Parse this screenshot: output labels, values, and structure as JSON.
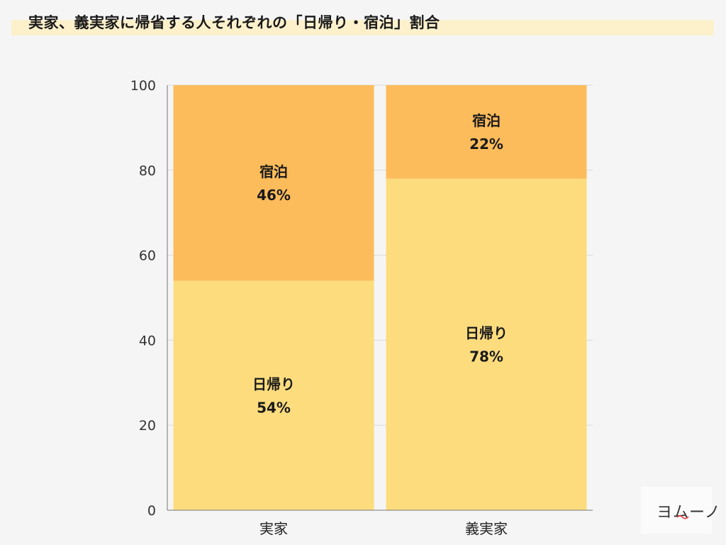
{
  "title": "実家、義実家に帰省する人それぞれの「日帰り・宿泊」割合",
  "logo": "ヨムーノ",
  "colors": {
    "higaeri": "#fddc7e",
    "shukuhaku": "#fdbc5b",
    "grid": "#d9d9d9",
    "axis": "#777777",
    "background": "#f5f5f5"
  },
  "chart_data": {
    "type": "bar",
    "stacked": true,
    "categories": [
      "実家",
      "義実家"
    ],
    "series": [
      {
        "name": "日帰り",
        "values": [
          54,
          78
        ],
        "labels": [
          "54%",
          "78%"
        ]
      },
      {
        "name": "宿泊",
        "values": [
          46,
          22
        ],
        "labels": [
          "46%",
          "22%"
        ]
      }
    ],
    "yticks": [
      "0",
      "20",
      "40",
      "60",
      "80",
      "100"
    ],
    "ylim": [
      0,
      100
    ],
    "grid": true,
    "legend": "none"
  }
}
